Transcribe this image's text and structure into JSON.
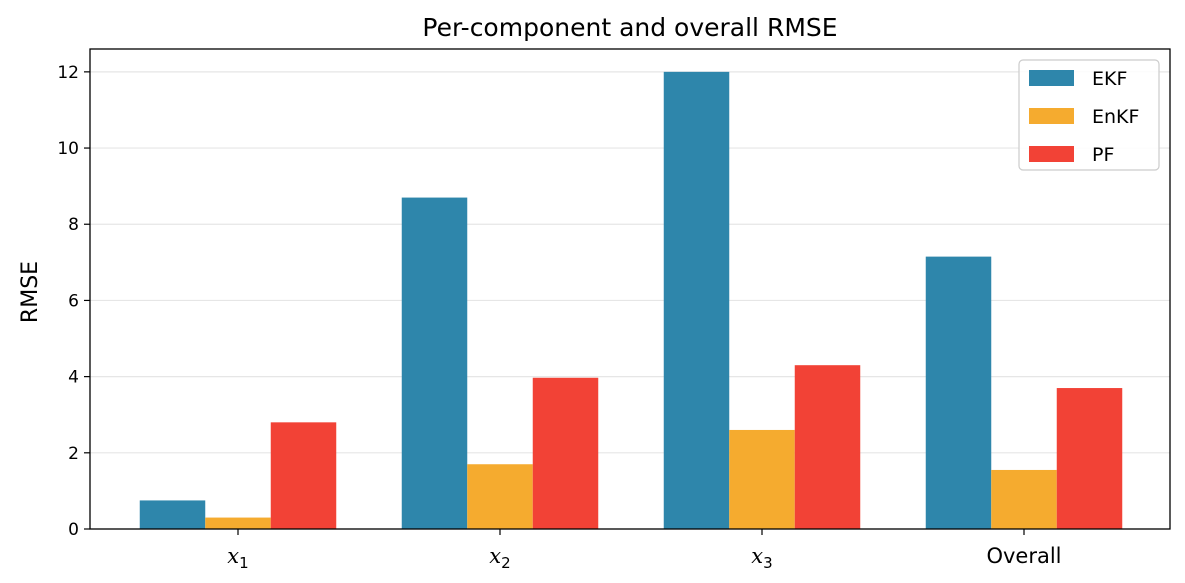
{
  "chart_data": {
    "type": "bar",
    "title": "Per-component and overall RMSE",
    "xlabel": "",
    "ylabel": "RMSE",
    "categories": [
      {
        "base": "x",
        "sub": "1"
      },
      {
        "base": "x",
        "sub": "2"
      },
      {
        "base": "x",
        "sub": "3"
      },
      {
        "base": "Overall",
        "sub": ""
      }
    ],
    "series": [
      {
        "name": "EKF",
        "color": "#2e86ab",
        "values": [
          0.75,
          8.7,
          12.0,
          7.15
        ]
      },
      {
        "name": "EnKF",
        "color": "#f5ab2f",
        "values": [
          0.3,
          1.7,
          2.6,
          1.55
        ]
      },
      {
        "name": "PF",
        "color": "#f24236",
        "values": [
          2.8,
          3.97,
          4.3,
          3.7
        ]
      }
    ],
    "ylim": [
      0,
      12.6
    ],
    "yticks": [
      "0",
      "2",
      "4",
      "6",
      "8",
      "10",
      "12"
    ],
    "grid": "horizontal",
    "legend_position": "top-right"
  }
}
